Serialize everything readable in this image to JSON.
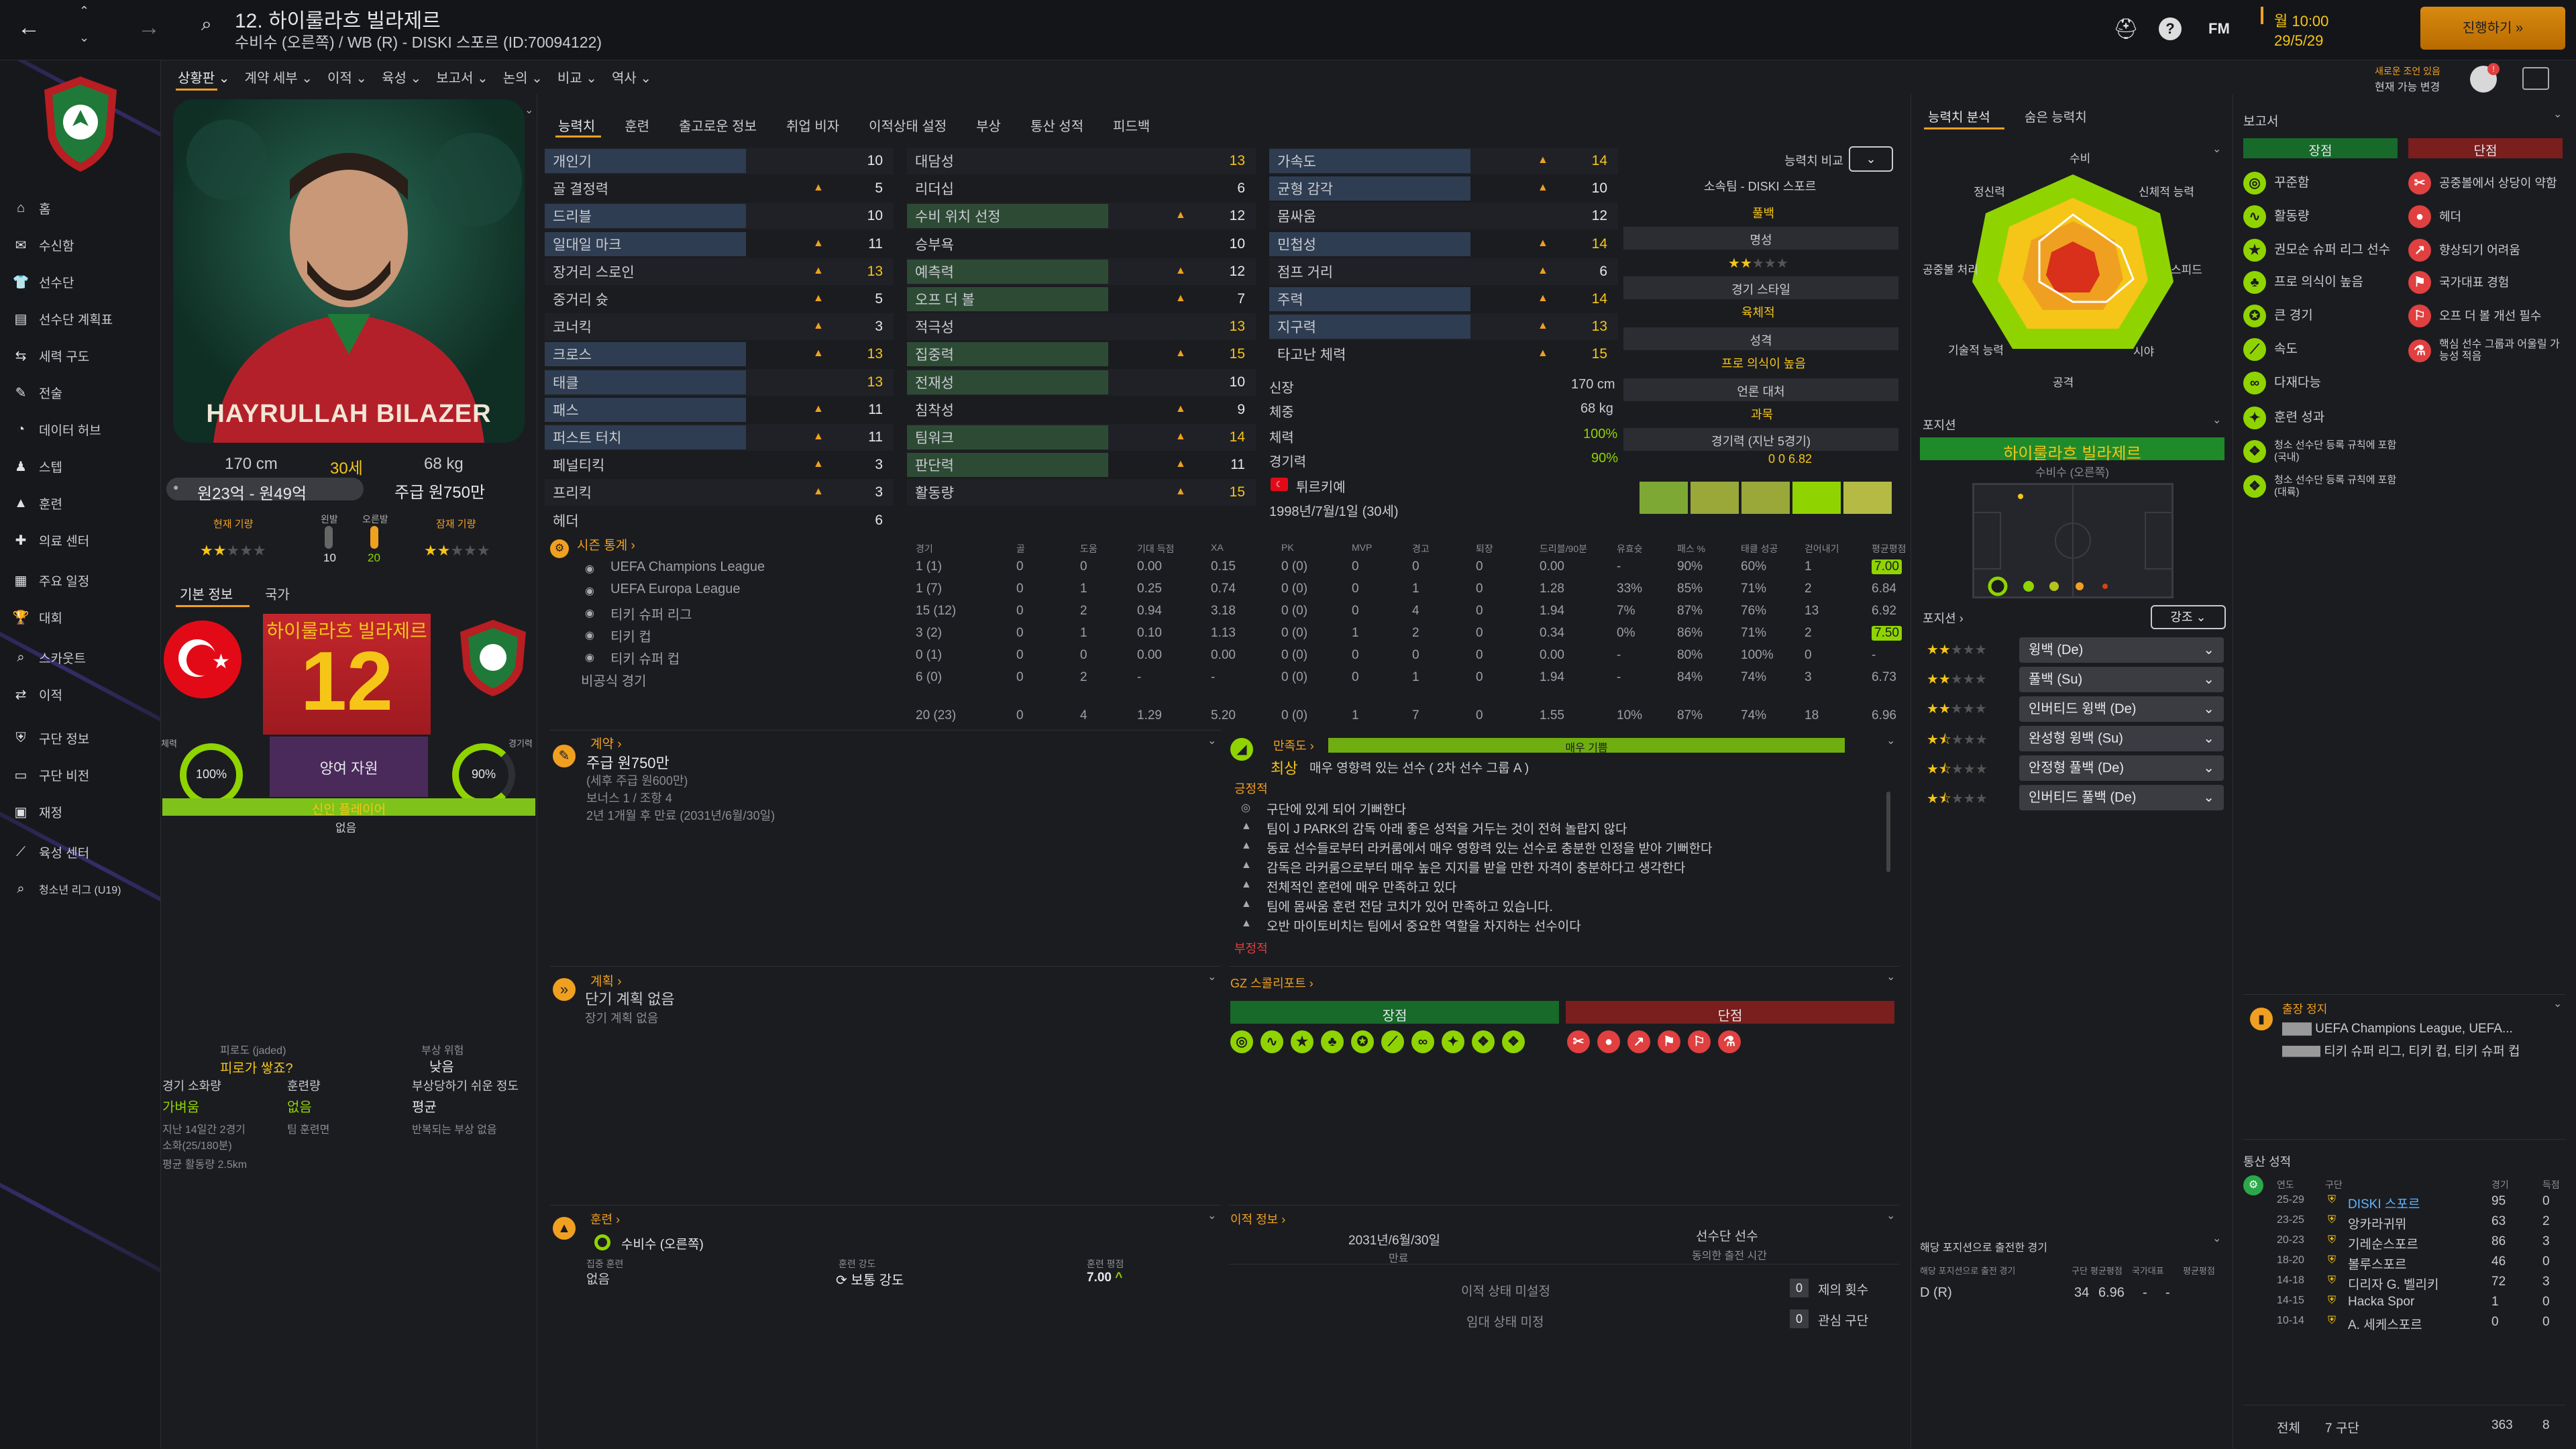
{
  "header": {
    "number": "12.",
    "name": "하이룰라흐 빌라제르",
    "sub": "수비수 (오른쪽) / WB (R) - DISKI 스포르 (ID:70094122)",
    "fm_label": "FM",
    "date_line1": "월 10:00",
    "date_line2": "29/5/29",
    "continue_label": "진행하기",
    "notice_line1": "새로운 조언 있음",
    "notice_line2": "현재 가능 변경"
  },
  "subtabs": [
    "상황판",
    "계약 세부",
    "이적",
    "육성",
    "보고서",
    "논의",
    "비교",
    "역사"
  ],
  "nav": [
    {
      "icon": "home-icon",
      "label": "홈"
    },
    {
      "icon": "inbox-icon",
      "label": "수신함"
    },
    {
      "icon": "squad-icon",
      "label": "선수단"
    },
    {
      "icon": "squad-plan-icon",
      "label": "선수단 계획표"
    },
    {
      "icon": "dynamics-icon",
      "label": "세력 구도"
    },
    {
      "icon": "tactics-icon",
      "label": "전술"
    },
    {
      "icon": "data-hub-icon",
      "label": "데이터 허브"
    },
    {
      "icon": "staff-icon",
      "label": "스텝"
    },
    {
      "icon": "training-icon",
      "label": "훈련"
    },
    {
      "icon": "medical-icon",
      "label": "의료 센터"
    },
    {
      "icon": "schedule-icon",
      "label": "주요 일정"
    },
    {
      "icon": "competitions-icon",
      "label": "대회"
    },
    {
      "icon": "scouting-icon",
      "label": "스카웃트"
    },
    {
      "icon": "transfers-icon",
      "label": "이적"
    },
    {
      "icon": "club-info-icon",
      "label": "구단 정보"
    },
    {
      "icon": "club-vision-icon",
      "label": "구단 비전"
    },
    {
      "icon": "finances-icon",
      "label": "재정"
    },
    {
      "icon": "dev-centre-icon",
      "label": "육성 센터"
    },
    {
      "icon": "youth-league-icon",
      "label": "청소년 리그 (U19)"
    }
  ],
  "player": {
    "photo_name": "HAYRULLAH BILAZER",
    "height": "170 cm",
    "age": "30세",
    "weight": "68 kg",
    "value": "원23억 - 원49억",
    "wage": "주급 원750만",
    "current_ability_label": "현재 기량",
    "potential_ability_label": "잠재 기량",
    "ability_stars": 2,
    "potential_stars": 2,
    "right_foot_label": "왼발",
    "left_foot_label": "오른발",
    "foot_left_val": "10",
    "foot_right_val": "20",
    "tab_basic": "기본 정보",
    "tab_nation": "국가",
    "shirt_name": "하이룰라흐 빌라제르",
    "shirt_number": "12",
    "fitness_label": "체력",
    "fitness_val": "100%",
    "morale_label": "경기력",
    "morale_val": "90%",
    "squad_status": "양여 자원",
    "role_bar": "신인 플레이어",
    "role_none": "없음"
  },
  "attr_tabs": [
    "능력치",
    "훈련",
    "출고로운 정보",
    "취업 비자",
    "이적상태 설정",
    "부상",
    "통산 성적",
    "피드백"
  ],
  "attributes": {
    "col1": [
      [
        "개인기",
        "10"
      ],
      [
        "골 결정력",
        "5"
      ],
      [
        "드리블",
        "10"
      ],
      [
        "일대일 마크",
        "11"
      ],
      [
        "장거리 스로인",
        "13"
      ],
      [
        "중거리 슛",
        "5"
      ],
      [
        "코너킥",
        "3"
      ],
      [
        "크로스",
        "13"
      ],
      [
        "태클",
        "13"
      ],
      [
        "패스",
        "11"
      ],
      [
        "퍼스트 터치",
        "11"
      ],
      [
        "페널티킥",
        "3"
      ],
      [
        "프리킥",
        "3"
      ],
      [
        "헤더",
        "6"
      ]
    ],
    "col2": [
      [
        "대담성",
        "13"
      ],
      [
        "리더십",
        "6"
      ],
      [
        "수비 위치 선정",
        "12"
      ],
      [
        "승부욕",
        "10"
      ],
      [
        "예측력",
        "12"
      ],
      [
        "오프 더 볼",
        "7"
      ],
      [
        "적극성",
        "13"
      ],
      [
        "집중력",
        "15"
      ],
      [
        "전재성",
        "10"
      ],
      [
        "침착성",
        "9"
      ],
      [
        "팀워크",
        "14"
      ],
      [
        "판단력",
        "11"
      ],
      [
        "활동량",
        "15"
      ]
    ],
    "col3": [
      [
        "가속도",
        "14"
      ],
      [
        "균형 감각",
        "10"
      ],
      [
        "몸싸움",
        "12"
      ],
      [
        "민첩성",
        "14"
      ],
      [
        "점프 거리",
        "6"
      ],
      [
        "주력",
        "14"
      ],
      [
        "지구력",
        "13"
      ],
      [
        "타고난 체력",
        "15"
      ]
    ],
    "phys": {
      "height_label": "신장",
      "height": "170 cm",
      "weight_label": "체중",
      "weight": "68 kg",
      "fitness_label": "체력",
      "fitness": "100%",
      "match_label": "경기력",
      "match": "90%",
      "nation": "튀르키예",
      "dob": "1998년/7월/1일 (30세)"
    }
  },
  "compare": {
    "label": "능력치 비교",
    "club": "소속팀 - DISKI 스포르",
    "position": "풀백",
    "fame_label": "명성",
    "style_label": "경기 스타일",
    "style": "육체적",
    "personality_label": "성격",
    "personality": "프로 의식이 높음",
    "media_label": "언론 대처",
    "media": "과묵",
    "form_label": "경기력 (지난 5경기)",
    "form_vals": "0  0   6.82"
  },
  "season": {
    "title": "시즌 통계",
    "headers": [
      "경기",
      "골",
      "도움",
      "기대 득점",
      "XA",
      "PK",
      "MVP",
      "경고",
      "퇴장",
      "드리블/90분",
      "유효슛",
      "패스 %",
      "태클 성공",
      "걷어내기",
      "평균평점"
    ],
    "rows": [
      [
        "UEFA Champions League",
        "1 (1)",
        "0",
        "0",
        "0.00",
        "0.15",
        "0 (0)",
        "0",
        "0",
        "0",
        "0.00",
        "-",
        "90%",
        "60%",
        "1",
        "7.00"
      ],
      [
        "UEFA Europa League",
        "1 (7)",
        "0",
        "1",
        "0.25",
        "0.74",
        "0 (0)",
        "0",
        "1",
        "0",
        "1.28",
        "33%",
        "85%",
        "71%",
        "2",
        "6.84"
      ],
      [
        "티키 슈퍼 리그",
        "15 (12)",
        "0",
        "2",
        "0.94",
        "3.18",
        "0 (0)",
        "0",
        "4",
        "0",
        "1.94",
        "7%",
        "87%",
        "76%",
        "13",
        "6.92"
      ],
      [
        "티키 컵",
        "3 (2)",
        "0",
        "1",
        "0.10",
        "1.13",
        "0 (0)",
        "1",
        "2",
        "0",
        "0.34",
        "0%",
        "86%",
        "71%",
        "2",
        "7.50"
      ],
      [
        "티키 슈퍼 컵",
        "0 (1)",
        "0",
        "0",
        "0.00",
        "0.00",
        "0 (0)",
        "0",
        "0",
        "0",
        "0.00",
        "-",
        "80%",
        "100%",
        "0",
        "-"
      ],
      [
        "비공식 경기",
        "6 (0)",
        "0",
        "2",
        "-",
        "-",
        "0 (0)",
        "0",
        "1",
        "0",
        "1.94",
        "-",
        "84%",
        "74%",
        "3",
        "6.73"
      ]
    ],
    "total": [
      "20 (23)",
      "0",
      "4",
      "1.29",
      "5.20",
      "0 (0)",
      "1",
      "7",
      "0",
      "1.55",
      "10%",
      "87%",
      "74%",
      "18",
      "6.96"
    ]
  },
  "contract": {
    "title": "계약",
    "wage": "주급 원750만",
    "wage_note": "(세후 주급 원600만)",
    "bonus": "보너스 1 / 조항 4",
    "expiry": "2년 1개월 후 만료 (2031년/6월/30일)"
  },
  "plans": {
    "title": "계획",
    "short": "단기 계획 없음",
    "long": "장기 계획 없음"
  },
  "happiness": {
    "title": "만족도",
    "level": "최상",
    "desc": "매우 영향력 있는 선수 ( 2차 선수 그룹 A )",
    "bar_label": "매우 기쁨",
    "positive": "긍정적",
    "items": [
      "구단에 있게 되어 기뻐한다",
      "팀이 J PARK의 감독 아래 좋은 성적을 거두는 것이 전혀 놀랍지 않다",
      "동료 선수들로부터 라커룸에서 매우 영향력 있는 선수로 충분한 인정을 받아 기뻐한다",
      "감독은 라커룸으로부터 매우 높은 지지를 받을 만한 자격이 충분하다고 생각한다",
      "전체적인 훈련에 매우 만족하고 있다",
      "팀에 몸싸움 훈련 전담 코치가 있어 만족하고 있습니다.",
      "오반 마이토비치는 팀에서 중요한 역할을 차지하는 선수이다"
    ],
    "negative": "부정적"
  },
  "scout": {
    "title": "GZ 스콜리포트",
    "strengths": "장점",
    "weaknesses": "단점"
  },
  "training": {
    "title": "훈련",
    "pos": "수비수 (오른쪽)",
    "focus_label": "집중 훈련",
    "focus": "없음",
    "intensity_label": "훈련 강도",
    "intensity": "보통 강도",
    "rating_label": "훈련 평점",
    "rating": "7.00"
  },
  "transfer": {
    "title": "이적 정보",
    "date": "2031년/6월/30일",
    "date_label": "만료",
    "squad": "선수단 선수",
    "squad_sub": "동의한 출전 시간",
    "status1": "이적 상태 미설정",
    "status2": "임대 상태 미정",
    "offers": "제의 횟수",
    "offers_n": "0",
    "interest": "관심 구단",
    "interest_n": "0"
  },
  "injury": {
    "prone_label": "피로도 (jaded)",
    "prone": "피로가 쌓죠?",
    "risk_label": "부상 위험",
    "risk": "낮음",
    "load_label": "경기 소화량",
    "load": "가벼움",
    "train_label": "훈련량",
    "train": "없음",
    "susc_label": "부상당하기 쉬운 정도",
    "susc": "평균",
    "recent": "지난 14일간 2경기",
    "recent2": "소화(25/180분)",
    "avg_dist": "평균 활동량 2.5km",
    "team": "팀 훈련면",
    "inj_note": "반복되는 부상 없음"
  },
  "right": {
    "tab1": "능력치 분석",
    "tab2": "숨은 능력치",
    "radar_labels": [
      "수비",
      "신체적 능력",
      "스피드",
      "시야",
      "공격",
      "기술적 능력",
      "공중볼 처리",
      "정신력"
    ],
    "position_label": "포지션",
    "position_name": "하이룰라흐 빌라제르",
    "position_sub": "수비수 (오른쪽)",
    "roles_label": "포지션",
    "roles_btn": "강조",
    "roles": [
      [
        "윙백 (De)",
        2
      ],
      [
        "풀백 (Su)",
        2
      ],
      [
        "인버티드 윙백 (De)",
        2
      ],
      [
        "완성형 윙백 (Su)",
        1.5
      ],
      [
        "안정형 풀백 (De)",
        1.5
      ],
      [
        "인버티드 풀백 (De)",
        1.5
      ]
    ],
    "exp_title": "해당 포지션으로 출전한 경기",
    "exp_headers": [
      "해당 포지션으로 출전 경기",
      "구단",
      "평균평점",
      "국가대표",
      "평균평점"
    ],
    "exp_row": [
      "D (R)",
      "34",
      "6.96",
      "-",
      "-"
    ]
  },
  "report": {
    "title": "보고서",
    "pro": "장점",
    "con": "단점",
    "pros": [
      "꾸준함",
      "활동량",
      "권모순 슈퍼 리그 선수",
      "프로 의식이 높음",
      "큰 경기",
      "속도",
      "다재다능",
      "훈련 성과",
      "청소 선수단 등록 규칙에 포함(국내)",
      "청소 선수단 등록 규칙에 포함(대륙)"
    ],
    "cons": [
      "공중볼에서 상당이 약함",
      "헤더",
      "향상되기 어려움",
      "국가대표 경험",
      "오프 더 볼 개선 필수",
      "핵심 선수 그룹과 어울릴 가능성 적음"
    ],
    "susp_title": "출장 정지",
    "susp1": "UEFA Champions League, UEFA...",
    "susp2": "티키 슈퍼 리그, 티키 컵, 티키 슈퍼 컵"
  },
  "career": {
    "title": "통산 성적",
    "headers": [
      "연도",
      "구단",
      "경기",
      "득점"
    ],
    "rows": [
      [
        "25-29",
        "DISKI 스포르",
        "95",
        "0"
      ],
      [
        "23-25",
        "앙카라귀뮈",
        "63",
        "2"
      ],
      [
        "20-23",
        "기레순스포르",
        "86",
        "3"
      ],
      [
        "18-20",
        "볼루스포르",
        "46",
        "0"
      ],
      [
        "14-18",
        "디리자 G. 벨리키",
        "72",
        "3"
      ],
      [
        "14-15",
        "Hacka Spor",
        "1",
        "0"
      ],
      [
        "10-14",
        "A. 세케스포르",
        "0",
        "0"
      ]
    ],
    "total_label": "전체",
    "total_clubs": "7 구단",
    "total_apps": "363",
    "total_goals": "8"
  },
  "colors": {
    "accent": "#f5c518",
    "green": "#8fd400",
    "red": "#e04040",
    "orange": "#f0a020"
  }
}
